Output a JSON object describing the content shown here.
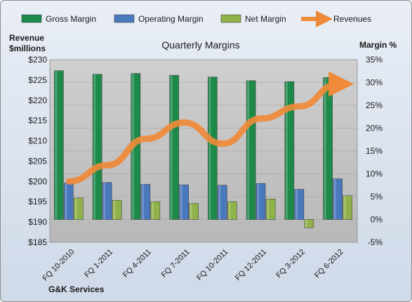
{
  "chart_data": {
    "type": "bar",
    "title": "Quarterly Margins",
    "subtitle": "",
    "footer_label": "G&K Services",
    "categories": [
      "FQ 10-2010",
      "FQ 1-2011",
      "FQ 4-2011",
      "FQ 7-2011",
      "FQ 10-2011",
      "FQ 12-2011",
      "FQ 3-2012",
      "FQ 6-2012"
    ],
    "left_axis": {
      "label_line1": "Revenue",
      "label_line2": "$millions",
      "range": [
        185,
        230
      ],
      "ticks": [
        "$185",
        "$190",
        "$195",
        "$200",
        "$205",
        "$210",
        "$215",
        "$220",
        "$225",
        "$230"
      ]
    },
    "right_axis": {
      "label": "Margin %",
      "range": [
        -5,
        35
      ],
      "ticks": [
        "-5%",
        "0%",
        "5%",
        "10%",
        "15%",
        "20%",
        "25%",
        "30%",
        "35%"
      ]
    },
    "grid": true,
    "legend_position": "top",
    "series": [
      {
        "name": "Gross Margin",
        "kind": "bar",
        "axis": "right",
        "color": "#1e8a4a",
        "values": [
          32.6,
          31.8,
          32.0,
          31.6,
          31.2,
          30.4,
          30.2,
          31.1
        ]
      },
      {
        "name": "Operating Margin",
        "kind": "bar",
        "axis": "right",
        "color": "#4a78bd",
        "values": [
          8.0,
          8.1,
          7.7,
          7.6,
          7.5,
          7.9,
          6.6,
          8.9
        ]
      },
      {
        "name": "Net Margin",
        "kind": "bar",
        "axis": "right",
        "color": "#8fb24a",
        "values": [
          4.7,
          4.2,
          3.9,
          3.5,
          3.9,
          4.5,
          -1.8,
          5.2
        ]
      },
      {
        "name": "Revenues",
        "kind": "line",
        "axis": "left",
        "color": "#ef8a3a",
        "values": [
          200.0,
          204.0,
          210.5,
          214.5,
          209.3,
          215.5,
          218.5,
          224.0
        ]
      }
    ]
  }
}
